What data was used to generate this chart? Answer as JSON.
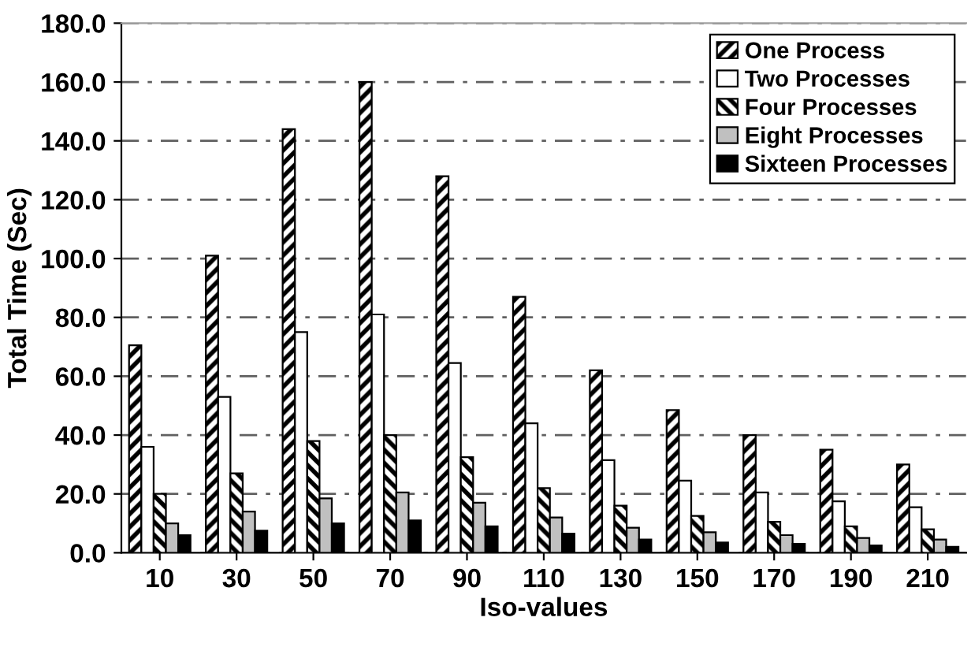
{
  "chart_data": {
    "type": "bar",
    "xlabel": "Iso-values",
    "ylabel": "Total Time (Sec)",
    "categories": [
      "10",
      "30",
      "50",
      "70",
      "90",
      "110",
      "130",
      "150",
      "170",
      "190",
      "210"
    ],
    "series": [
      {
        "name": "One Process",
        "color": "#000000",
        "values": [
          70.5,
          101,
          144,
          160,
          128,
          87,
          62,
          48.5,
          40,
          35,
          30
        ]
      },
      {
        "name": "Two Processes",
        "color": "#ffffff",
        "values": [
          36,
          53,
          75,
          81,
          64.5,
          44,
          31.5,
          24.5,
          20.5,
          17.5,
          15.5
        ]
      },
      {
        "name": "Four Processes",
        "color": "#000000",
        "values": [
          20,
          27,
          38,
          40,
          32.5,
          22,
          16,
          12.5,
          10.5,
          9,
          8
        ]
      },
      {
        "name": "Eight Processes",
        "color": "#c0c0c0",
        "values": [
          10,
          14,
          18.5,
          20.5,
          17,
          12,
          8.5,
          7,
          6,
          5,
          4.5
        ]
      },
      {
        "name": "Sixteen Processes",
        "color": "#000000",
        "values": [
          6,
          7.5,
          10,
          11,
          9,
          6.5,
          4.5,
          3.5,
          3,
          2.5,
          2
        ]
      }
    ],
    "ylim": [
      0,
      180
    ],
    "yticks": [
      {
        "value": 0,
        "label": "0.0"
      },
      {
        "value": 20,
        "label": "20.0"
      },
      {
        "value": 40,
        "label": "40.0"
      },
      {
        "value": 60,
        "label": "60.0"
      },
      {
        "value": 80,
        "label": "80.0"
      },
      {
        "value": 100,
        "label": "100.0"
      },
      {
        "value": 120,
        "label": "120.0"
      },
      {
        "value": 140,
        "label": "140.0"
      },
      {
        "value": 160,
        "label": "160.0"
      },
      {
        "value": 180,
        "label": "180.0"
      }
    ],
    "grid": "y",
    "line_style": "dashed",
    "legend": "top right"
  }
}
